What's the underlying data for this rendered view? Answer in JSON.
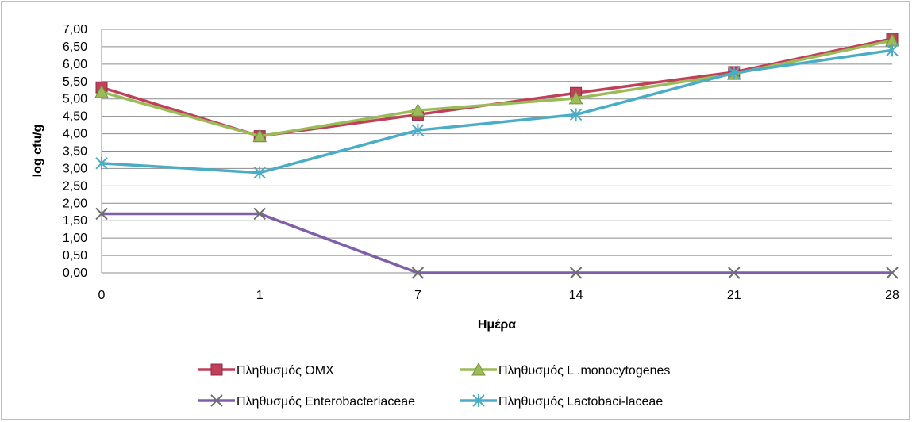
{
  "chart_data": {
    "type": "line",
    "categories": [
      "0",
      "1",
      "7",
      "14",
      "21",
      "28"
    ],
    "xlabel": "Ημέρα",
    "ylabel": "log cfu/g",
    "ylim": [
      0,
      7
    ],
    "ytick_step": 0.5,
    "ytick_labels": [
      "0,00",
      "0,50",
      "1,00",
      "1,50",
      "2,00",
      "2,50",
      "3,00",
      "3,50",
      "4,00",
      "4,50",
      "5,00",
      "5,50",
      "6,00",
      "6,50",
      "7,00"
    ],
    "grid": true,
    "legend_position": "bottom",
    "series": [
      {
        "name": "Πληθυσμός ΟΜΧ",
        "values": [
          5.33,
          3.93,
          4.55,
          5.17,
          5.77,
          6.73
        ],
        "color": "#c0405a",
        "marker": "square"
      },
      {
        "name": "Πληθυσμός L .monocytogenes",
        "values": [
          5.2,
          3.93,
          4.67,
          5.02,
          5.72,
          6.68
        ],
        "color": "#9bbb59",
        "marker": "triangle"
      },
      {
        "name": "Πληθυσμός Enterobacteriaceae",
        "values": [
          1.7,
          1.7,
          0.0,
          0.0,
          0.0,
          0.0
        ],
        "color": "#7f60a8",
        "marker": "x"
      },
      {
        "name": "Πληθυσμός Lactobaci-laceae",
        "values": [
          3.15,
          2.88,
          4.1,
          4.55,
          5.75,
          6.4
        ],
        "color": "#4bacc6",
        "marker": "star"
      }
    ]
  }
}
